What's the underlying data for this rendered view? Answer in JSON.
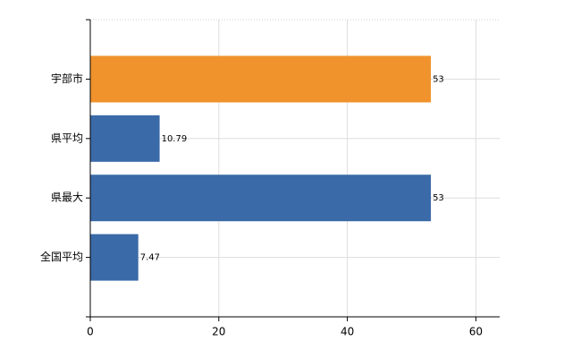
{
  "chart_data": {
    "type": "bar",
    "orientation": "horizontal",
    "categories": [
      "宇部市",
      "県平均",
      "県最大",
      "全国平均"
    ],
    "values": [
      53,
      10.79,
      53,
      7.47
    ],
    "colors": [
      "#f0932d",
      "#3a6aa8",
      "#3a6aa8",
      "#3a6aa8"
    ],
    "xlim": [
      0,
      63.7
    ],
    "xticks": [
      0,
      20,
      40,
      60
    ],
    "grid": true
  }
}
